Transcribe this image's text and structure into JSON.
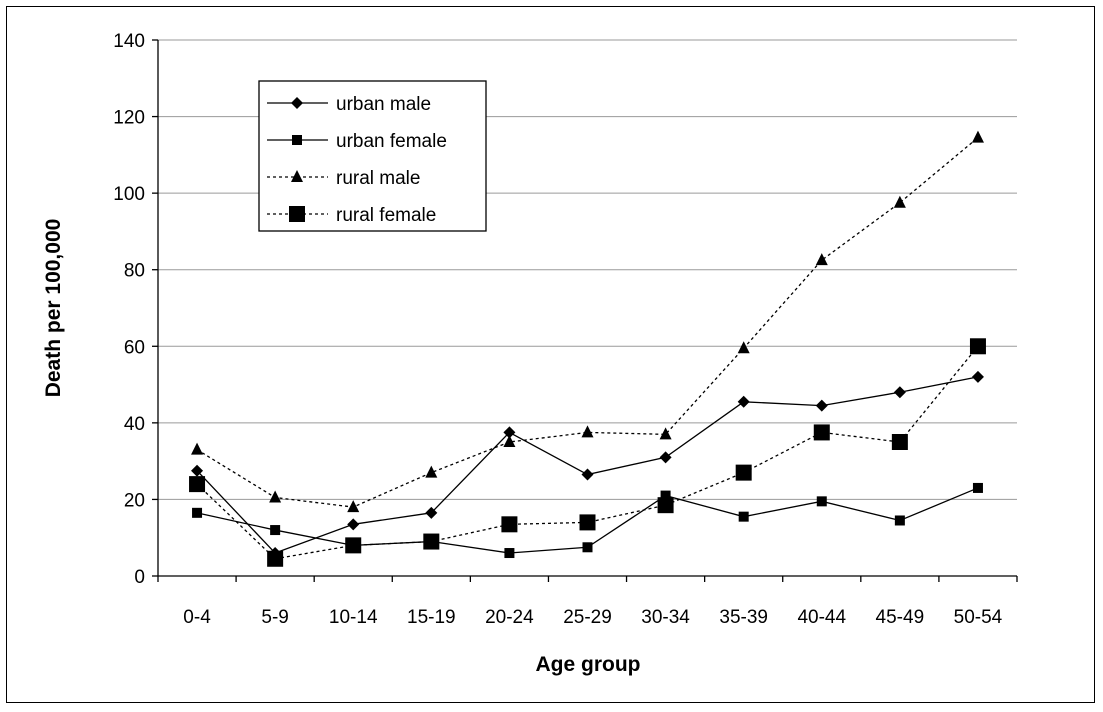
{
  "chart_data": {
    "type": "line",
    "title": "",
    "xlabel": "Age group",
    "ylabel": "Death per 100,000",
    "ylim": [
      0,
      140
    ],
    "yticks": [
      0,
      20,
      40,
      60,
      80,
      100,
      120,
      140
    ],
    "grid": true,
    "legend_position": "top-left",
    "categories": [
      "0-4",
      "5-9",
      "10-14",
      "15-19",
      "20-24",
      "25-29",
      "30-34",
      "35-39",
      "40-44",
      "45-49",
      "50-54"
    ],
    "series": [
      {
        "name": "urban male",
        "marker": "diamond",
        "line": "solid",
        "values": [
          27.5,
          6,
          13.5,
          16.5,
          37.5,
          26.5,
          31,
          45.5,
          44.5,
          48,
          52
        ]
      },
      {
        "name": "urban female",
        "marker": "square-small",
        "line": "solid",
        "values": [
          16.5,
          12,
          8,
          9,
          6,
          7.5,
          21,
          15.5,
          19.5,
          14.5,
          23
        ]
      },
      {
        "name": "rural male",
        "marker": "triangle",
        "line": "dotted",
        "values": [
          33,
          20.5,
          18,
          27,
          35,
          37.5,
          37,
          59.5,
          82.5,
          97.5,
          114.5
        ]
      },
      {
        "name": "rural female",
        "marker": "square-large",
        "line": "dotted",
        "values": [
          24,
          4.5,
          8,
          9,
          13.5,
          14,
          18.5,
          27,
          37.5,
          35,
          60
        ]
      }
    ]
  }
}
